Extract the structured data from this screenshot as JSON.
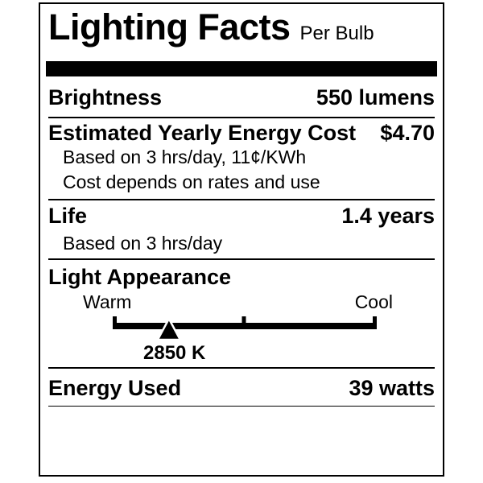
{
  "label": {
    "title": "Lighting Facts",
    "subtitle": "Per Bulb",
    "brightness": {
      "name": "Brightness",
      "value": "550 lumens"
    },
    "energy_cost": {
      "name": "Estimated Yearly Energy Cost",
      "value": "$4.70",
      "notes": [
        "Based on 3 hrs/day, 11¢/KWh",
        "Cost depends on rates and use"
      ]
    },
    "life": {
      "name": "Life",
      "value": "1.4 years",
      "notes": [
        "Based on 3 hrs/day"
      ]
    },
    "light_appearance": {
      "name": "Light Appearance",
      "warm_label": "Warm",
      "cool_label": "Cool",
      "kelvin": "2850 K",
      "marker_pct": 21.3
    },
    "energy_used": {
      "name": "Energy Used",
      "value": "39 watts"
    },
    "colors": {
      "ink": "#000000",
      "background": "#ffffff"
    }
  }
}
